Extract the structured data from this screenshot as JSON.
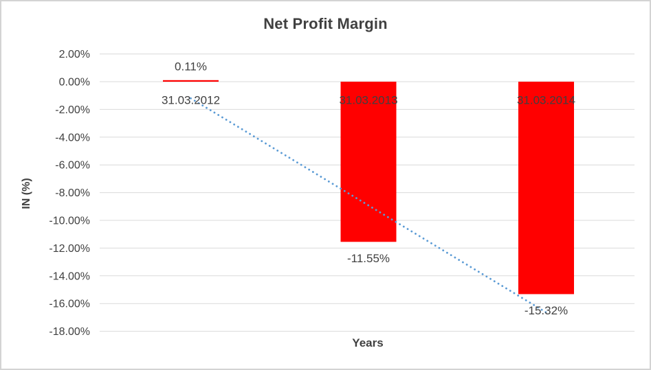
{
  "window": {
    "background": "#ffffff",
    "border_color": "#d3d3d3"
  },
  "chart_data": {
    "type": "bar",
    "title": "Net Profit Margin",
    "xlabel": "Years",
    "ylabel": "IN (%)",
    "categories": [
      "31.03.2012",
      "31.03.2013",
      "31.03.2014"
    ],
    "series": [
      {
        "name": "Net Profit Margin",
        "color": "#ff0000",
        "values": [
          0.11,
          -11.55,
          -15.32
        ],
        "data_labels": [
          "0.11%",
          "-11.55%",
          "-15.32%"
        ]
      }
    ],
    "trendline": {
      "type": "linear",
      "style": "dotted",
      "color": "#5b9bd5",
      "start_value": -1.2,
      "end_value": -16.64
    },
    "y_axis": {
      "min": -18,
      "max": 2,
      "step": 2,
      "tick_labels": [
        "2.00%",
        "0.00%",
        "-2.00%",
        "-4.00%",
        "-6.00%",
        "-8.00%",
        "-10.00%",
        "-12.00%",
        "-14.00%",
        "-16.00%",
        "-18.00%"
      ]
    },
    "grid": true,
    "legend": "none",
    "text_color": "#404040",
    "gridline_color": "#d9d9d9"
  }
}
